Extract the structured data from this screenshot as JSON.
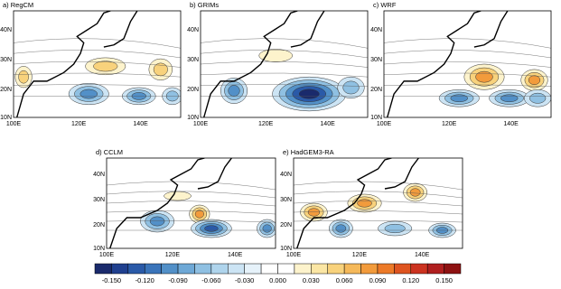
{
  "panels": [
    {
      "title": "a) RegCM",
      "x_labels": [
        "100E",
        "120E",
        "140E"
      ],
      "y_labels": [
        "40N",
        "30N",
        "20N",
        "10N"
      ]
    },
    {
      "title": "b) GRIMs",
      "x_labels": [
        "100E",
        "120E",
        "140E"
      ],
      "y_labels": [
        "40N",
        "30N",
        "20N",
        "10N"
      ]
    },
    {
      "title": "c) WRF",
      "x_labels": [
        "100E",
        "120E",
        "140E"
      ],
      "y_labels": [
        "40N",
        "30N",
        "20N",
        "10N"
      ]
    },
    {
      "title": "d) CCLM",
      "x_labels": [
        "100E",
        "120E",
        "140E"
      ],
      "y_labels": [
        "40N",
        "30N",
        "20N",
        "10N"
      ]
    },
    {
      "title": "e) HadGEM3-RA",
      "x_labels": [
        "100E",
        "120E",
        "140E"
      ],
      "y_labels": [
        "40N",
        "30N",
        "20N",
        "10N"
      ]
    }
  ],
  "colorbar": {
    "labels": [
      "-0.150",
      "-0.120",
      "-0.090",
      "-0.060",
      "-0.030",
      "0.000",
      "0.030",
      "0.060",
      "0.090",
      "0.120",
      "0.150"
    ],
    "colors": [
      "#1a2a6c",
      "#20408f",
      "#2a5aa8",
      "#3a74ba",
      "#5290c8",
      "#6ea8d6",
      "#8fc0e2",
      "#afd4ec",
      "#cce4f4",
      "#e6f2fa",
      "#ffffff",
      "#ffffff",
      "#fdf3cc",
      "#fbe6a4",
      "#f8d27c",
      "#f5b95a",
      "#f29b3c",
      "#ec7a28",
      "#de5420",
      "#cc3320",
      "#b01f1f",
      "#8e1212"
    ]
  }
}
